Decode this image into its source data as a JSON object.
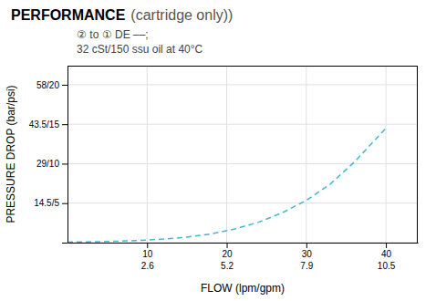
{
  "chart_data": {
    "type": "line",
    "title": "PERFORMANCE",
    "subtitle": "(cartridge only))",
    "annotations": [
      "② to ① DE ––;",
      "32 cSt/150 ssu oil at 40°C"
    ],
    "xlabel": "FLOW (lpm/gpm)",
    "ylabel": "PRESSURE DROP (bar/psi)",
    "x": [
      0,
      3,
      6,
      9,
      12,
      15,
      18,
      21,
      24,
      27,
      30,
      33,
      36,
      40
    ],
    "values": [
      0.2,
      0.3,
      0.5,
      0.8,
      1.3,
      2.0,
      3.2,
      5.0,
      7.5,
      11.0,
      15.5,
      21.5,
      29.5,
      42.0
    ],
    "color": "#41b8d5",
    "line_style": "dashed",
    "xlim": [
      0,
      44
    ],
    "xticks": [
      10,
      20,
      30,
      40
    ],
    "x2ticks": [
      {
        "value": 10,
        "label": "2.6"
      },
      {
        "value": 20,
        "label": "5.2"
      },
      {
        "value": 30,
        "label": "7.9"
      },
      {
        "value": 40,
        "label": "10.5"
      }
    ],
    "ylim": [
      0,
      65
    ],
    "yticks": [
      {
        "value": 0,
        "label": null
      },
      {
        "value": 14.5,
        "label": "14.5/5"
      },
      {
        "value": 29,
        "label": "29/10"
      },
      {
        "value": 43.5,
        "label": "43.5/15"
      },
      {
        "value": 58,
        "label": "58/20"
      }
    ],
    "grid": true
  }
}
